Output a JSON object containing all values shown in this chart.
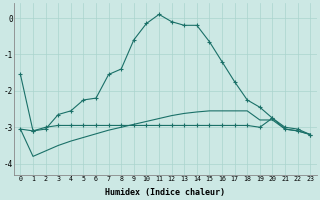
{
  "xlabel": "Humidex (Indice chaleur)",
  "background_color": "#cce8e4",
  "grid_color": "#aad4ce",
  "line_color": "#1a7068",
  "xlim": [
    -0.5,
    23.5
  ],
  "ylim": [
    -4.3,
    0.4
  ],
  "yticks": [
    0,
    -1,
    -2,
    -3,
    -4
  ],
  "xticks": [
    0,
    1,
    2,
    3,
    4,
    5,
    6,
    7,
    8,
    9,
    10,
    11,
    12,
    13,
    14,
    15,
    16,
    17,
    18,
    19,
    20,
    21,
    22,
    23
  ],
  "series1_x": [
    0,
    1,
    2,
    3,
    4,
    5,
    6,
    7,
    8,
    9,
    10,
    11,
    12,
    13,
    14,
    15,
    16,
    17,
    18,
    19,
    20,
    21,
    22,
    23
  ],
  "series1_y": [
    -1.55,
    -3.1,
    -3.05,
    -2.65,
    -2.55,
    -2.25,
    -2.2,
    -1.55,
    -1.4,
    -0.6,
    -0.15,
    0.1,
    -0.1,
    -0.2,
    -0.2,
    -0.65,
    -1.2,
    -1.75,
    -2.25,
    -2.45,
    -2.75,
    -3.0,
    -3.05,
    -3.2
  ],
  "series2_x": [
    0,
    1,
    2,
    3,
    4,
    5,
    6,
    7,
    8,
    9,
    10,
    11,
    12,
    13,
    14,
    15,
    16,
    17,
    18,
    19,
    20,
    21,
    22,
    23
  ],
  "series2_y": [
    -3.05,
    -3.1,
    -3.0,
    -2.95,
    -2.95,
    -2.95,
    -2.95,
    -2.95,
    -2.95,
    -2.95,
    -2.95,
    -2.95,
    -2.95,
    -2.95,
    -2.95,
    -2.95,
    -2.95,
    -2.95,
    -2.95,
    -3.0,
    -2.75,
    -3.05,
    -3.1,
    -3.2
  ],
  "series3_x": [
    0,
    1,
    2,
    3,
    4,
    5,
    6,
    7,
    8,
    9,
    10,
    11,
    12,
    13,
    14,
    15,
    16,
    17,
    18,
    19,
    20,
    21,
    22,
    23
  ],
  "series3_y": [
    -3.05,
    -3.8,
    -3.65,
    -3.5,
    -3.38,
    -3.28,
    -3.18,
    -3.08,
    -3.0,
    -2.92,
    -2.84,
    -2.76,
    -2.68,
    -2.62,
    -2.58,
    -2.55,
    -2.55,
    -2.55,
    -2.55,
    -2.8,
    -2.8,
    -3.05,
    -3.1,
    -3.2
  ]
}
